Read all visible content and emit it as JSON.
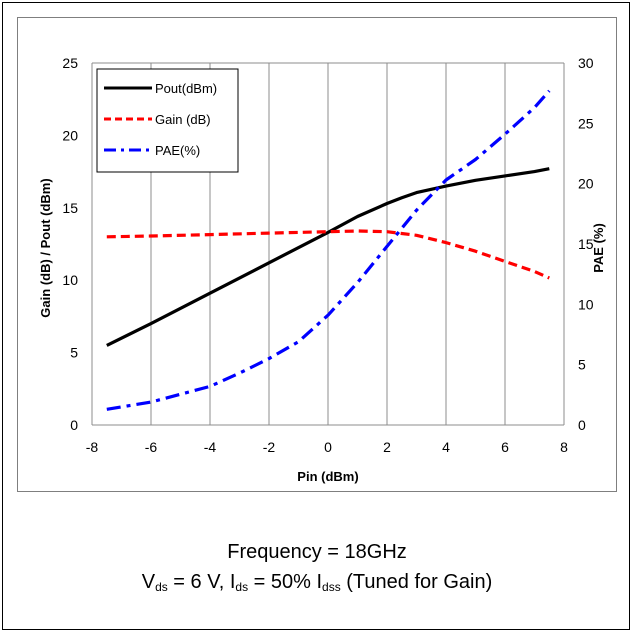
{
  "chart_data": {
    "type": "line",
    "xlabel": "Pin (dBm)",
    "ylabel": "Gain (dB) / Pout (dBm)",
    "y2label": "PAE (%)",
    "xlim": [
      -8,
      8
    ],
    "ylim": [
      0,
      25
    ],
    "y2lim": [
      0,
      30
    ],
    "xticks": [
      "-8",
      "-6",
      "-4",
      "-2",
      "0",
      "2",
      "4",
      "6",
      "8"
    ],
    "yticks": [
      "0",
      "5",
      "10",
      "15",
      "20",
      "25"
    ],
    "y2ticks": [
      "0",
      "5",
      "10",
      "15",
      "20",
      "25",
      "30"
    ],
    "grid": "vertical",
    "legend_position": "top-left",
    "series": [
      {
        "name": "Pout(dBm)",
        "axis": "left",
        "color": "#000000",
        "style": "solid",
        "x": [
          -7.5,
          -6,
          -4,
          -2,
          0,
          1,
          2,
          2.5,
          3,
          4,
          5,
          6,
          7,
          7.5
        ],
        "y": [
          5.5,
          7.0,
          9.1,
          11.2,
          13.3,
          14.4,
          15.3,
          15.7,
          16.05,
          16.5,
          16.9,
          17.2,
          17.5,
          17.7
        ]
      },
      {
        "name": "Gain (dB)",
        "axis": "left",
        "color": "#ff0000",
        "style": "dashed",
        "x": [
          -7.5,
          -6,
          -4,
          -2,
          0,
          1,
          2,
          3,
          4,
          5,
          6,
          7,
          7.5
        ],
        "y": [
          13.0,
          13.05,
          13.15,
          13.25,
          13.35,
          13.4,
          13.35,
          13.1,
          12.6,
          12.0,
          11.3,
          10.6,
          10.15
        ]
      },
      {
        "name": "PAE(%)",
        "axis": "right",
        "color": "#0000ff",
        "style": "dashdot",
        "x": [
          -7.5,
          -6,
          -4,
          -3,
          -2,
          -1,
          0,
          1,
          2,
          3,
          4,
          5,
          6,
          7,
          7.5
        ],
        "y": [
          1.3,
          1.9,
          3.2,
          4.3,
          5.5,
          6.9,
          9.1,
          11.8,
          14.8,
          17.8,
          20.3,
          22.0,
          24.1,
          26.3,
          27.7
        ]
      }
    ]
  },
  "caption": {
    "line1": "Frequency = 18GHz",
    "line2": {
      "v": "V",
      "ds1": "ds",
      "mid": " = 6 V, I",
      "ds2": "ds",
      "mid2": " = 50% I",
      "dss": "dss",
      "end": " (Tuned for Gain)"
    }
  }
}
